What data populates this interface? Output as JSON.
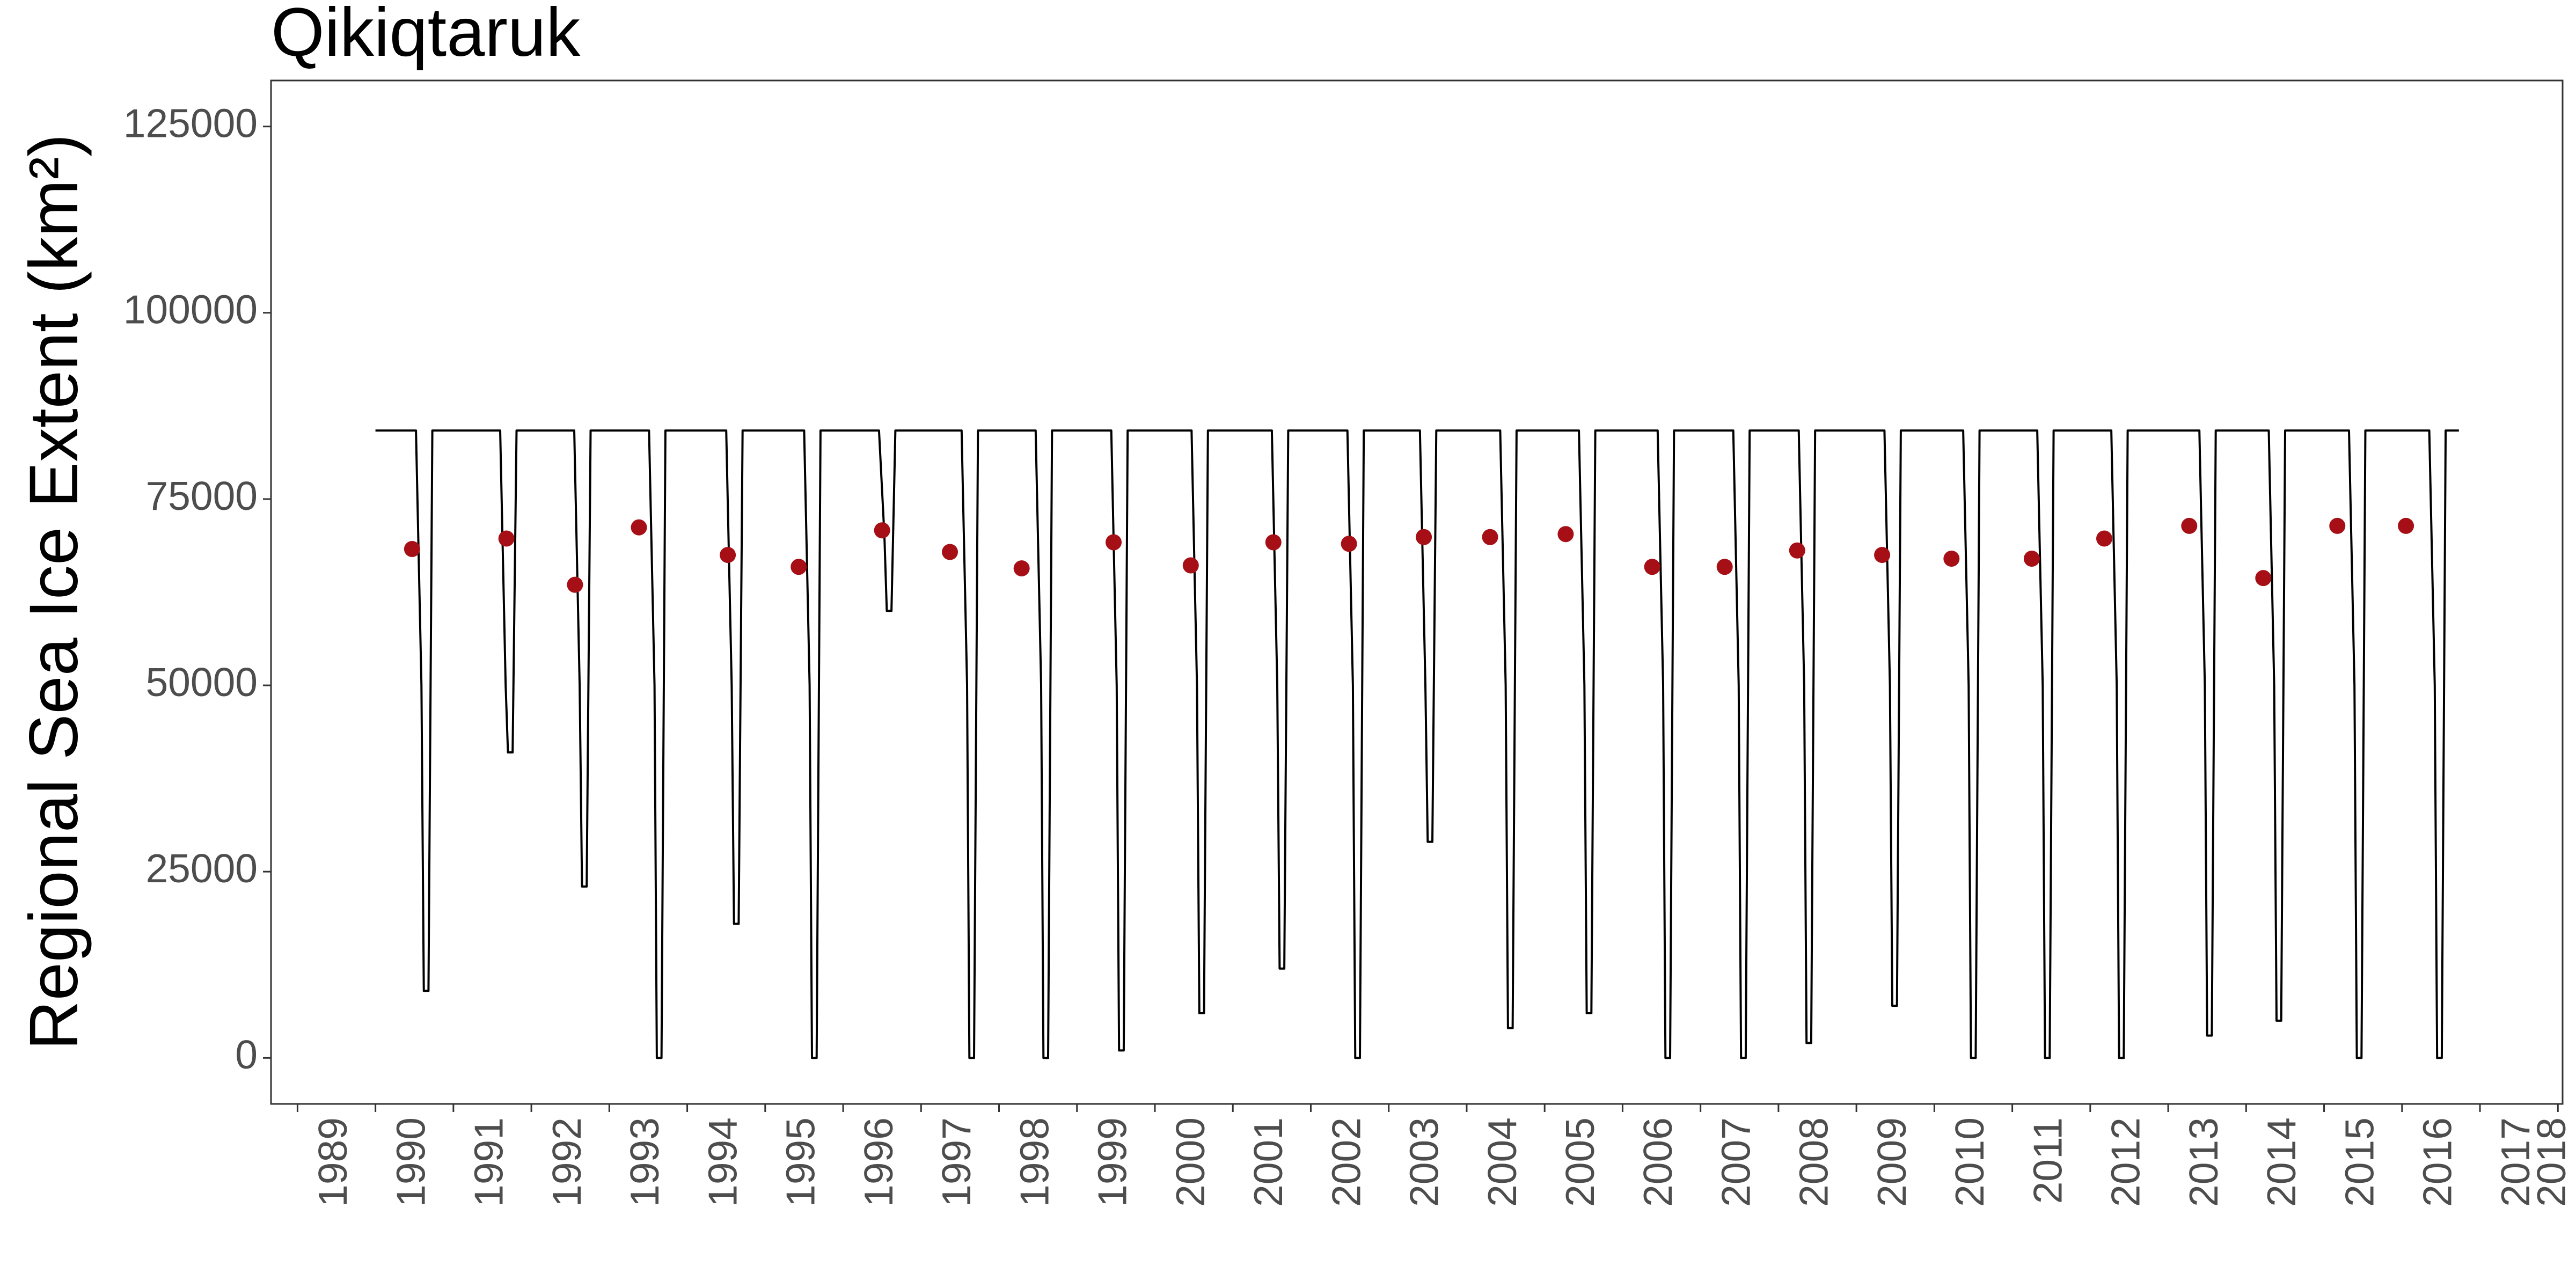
{
  "chart_data": {
    "type": "line",
    "title": "Qikiqtaruk",
    "ylabel": "Regional Sea Ice Extent (km²)",
    "xlim": [
      1988.66,
      2018.06
    ],
    "ylim": [
      -6173,
      131173
    ],
    "xticks": [
      1989,
      1990,
      1991,
      1992,
      1993,
      1994,
      1995,
      1996,
      1997,
      1998,
      1999,
      2000,
      2001,
      2002,
      2003,
      2004,
      2005,
      2006,
      2007,
      2008,
      2009,
      2010,
      2011,
      2012,
      2013,
      2014,
      2015,
      2016,
      2017,
      2018
    ],
    "yticks": [
      0,
      25000,
      50000,
      75000,
      100000,
      125000
    ],
    "line": {
      "color": "#000000",
      "x": [
        1990.0,
        1990.52,
        1990.59,
        1990.62,
        1990.68,
        1990.73,
        1991.6,
        1991.67,
        1991.7,
        1991.76,
        1991.81,
        1992.55,
        1992.62,
        1992.65,
        1992.71,
        1992.76,
        1993.51,
        1993.58,
        1993.61,
        1993.67,
        1993.72,
        1994.5,
        1994.57,
        1994.6,
        1994.66,
        1994.71,
        1995.5,
        1995.57,
        1995.6,
        1995.66,
        1995.71,
        1996.46,
        1996.53,
        1996.56,
        1996.62,
        1996.67,
        1997.52,
        1997.59,
        1997.62,
        1997.68,
        1997.73,
        1998.47,
        1998.54,
        1998.57,
        1998.63,
        1998.68,
        1999.44,
        1999.51,
        1999.54,
        1999.6,
        1999.65,
        2000.47,
        2000.54,
        2000.57,
        2000.63,
        2000.68,
        2001.5,
        2001.57,
        2001.6,
        2001.66,
        2001.71,
        2002.47,
        2002.54,
        2002.57,
        2002.63,
        2002.68,
        2003.4,
        2003.47,
        2003.5,
        2003.56,
        2003.61,
        2004.43,
        2004.5,
        2004.53,
        2004.59,
        2004.64,
        2005.44,
        2005.51,
        2005.54,
        2005.6,
        2005.65,
        2006.45,
        2006.52,
        2006.55,
        2006.61,
        2006.66,
        2007.42,
        2007.49,
        2007.52,
        2007.58,
        2007.63,
        2008.26,
        2008.33,
        2008.36,
        2008.42,
        2008.47,
        2009.36,
        2009.43,
        2009.46,
        2009.52,
        2009.57,
        2010.37,
        2010.44,
        2010.47,
        2010.53,
        2010.58,
        2011.32,
        2011.39,
        2011.42,
        2011.48,
        2011.53,
        2012.27,
        2012.34,
        2012.37,
        2012.43,
        2012.48,
        2013.4,
        2013.47,
        2013.5,
        2013.56,
        2013.61,
        2014.29,
        2014.36,
        2014.39,
        2014.45,
        2014.5,
        2015.32,
        2015.39,
        2015.42,
        2015.48,
        2015.53,
        2016.35,
        2016.42,
        2016.45,
        2016.51,
        2016.56,
        2016.73
      ],
      "values": [
        84200,
        84200,
        50000,
        9000,
        9000,
        84200,
        84200,
        50000,
        41000,
        41000,
        84200,
        84200,
        50000,
        23000,
        23000,
        84200,
        84200,
        50000,
        0,
        0,
        84200,
        84200,
        50000,
        18000,
        18000,
        84200,
        84200,
        50000,
        0,
        0,
        84200,
        84200,
        70000,
        60000,
        60000,
        84200,
        84200,
        50000,
        0,
        0,
        84200,
        84200,
        50000,
        0,
        0,
        84200,
        84200,
        50000,
        1000,
        1000,
        84200,
        84200,
        50000,
        6000,
        6000,
        84200,
        84200,
        50000,
        12000,
        12000,
        84200,
        84200,
        50000,
        0,
        0,
        84200,
        84200,
        50000,
        29000,
        29000,
        84200,
        84200,
        50000,
        4000,
        4000,
        84200,
        84200,
        50000,
        6000,
        6000,
        84200,
        84200,
        50000,
        0,
        0,
        84200,
        84200,
        50000,
        0,
        0,
        84200,
        84200,
        50000,
        2000,
        2000,
        84200,
        84200,
        50000,
        7000,
        7000,
        84200,
        84200,
        50000,
        0,
        0,
        84200,
        84200,
        50000,
        0,
        0,
        84200,
        84200,
        50000,
        0,
        0,
        84200,
        84200,
        50000,
        3000,
        3000,
        84200,
        84200,
        50000,
        5000,
        5000,
        84200,
        84200,
        50000,
        0,
        0,
        84200,
        84200,
        50000,
        0,
        0,
        84200,
        84200
      ]
    },
    "points": {
      "color": "#a50f15",
      "x": [
        1990.47,
        1991.68,
        1992.56,
        1993.38,
        1994.52,
        1995.43,
        1996.5,
        1997.37,
        1998.29,
        1999.47,
        2000.46,
        2001.52,
        2002.49,
        2003.45,
        2004.3,
        2005.27,
        2006.38,
        2007.31,
        2008.24,
        2009.33,
        2010.22,
        2011.25,
        2012.18,
        2013.27,
        2014.22,
        2015.17,
        2016.05
      ],
      "values": [
        68300,
        69700,
        63500,
        71200,
        67500,
        65900,
        70800,
        67900,
        65700,
        69200,
        66100,
        69200,
        69000,
        69900,
        69900,
        70300,
        65900,
        65900,
        68100,
        67500,
        67000,
        67000,
        69700,
        71400,
        64400,
        71400,
        71400
      ]
    }
  }
}
